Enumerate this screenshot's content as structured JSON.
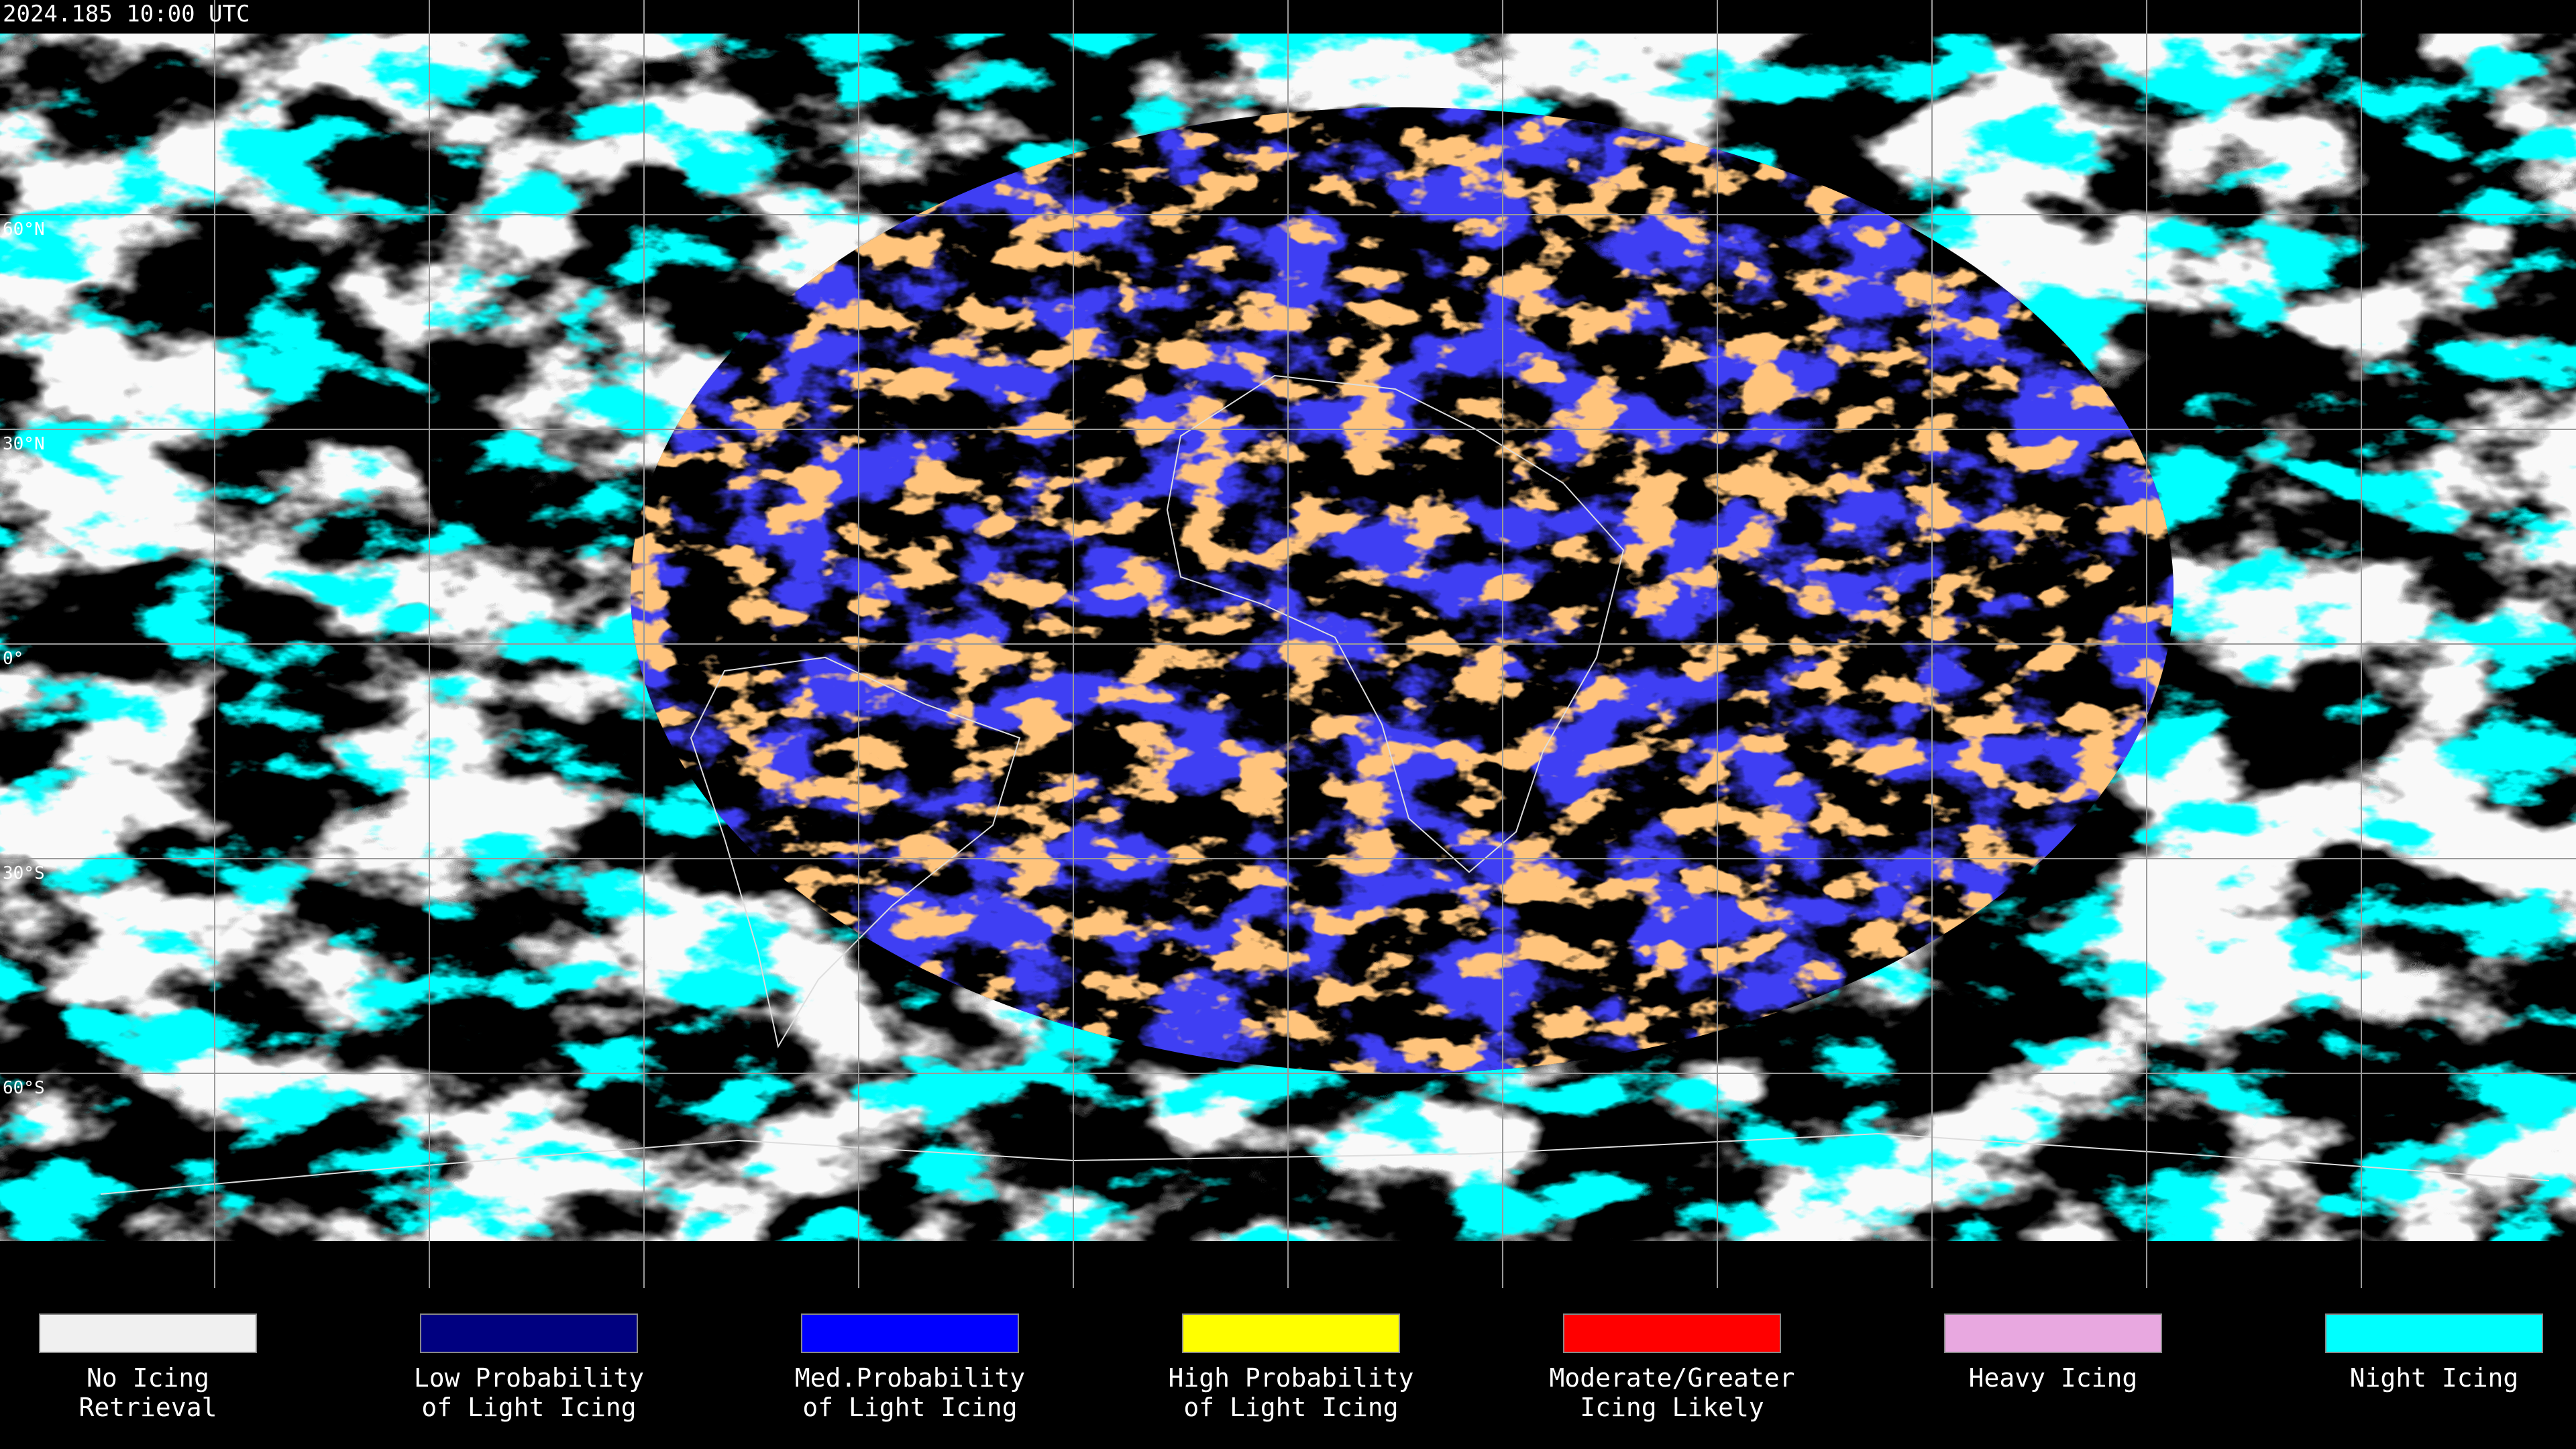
{
  "header": {
    "title": "2024.185 10:00 UTC"
  },
  "map": {
    "lat_labels": [
      "60°N",
      "30°N",
      "0°",
      "30°S",
      "60°S"
    ]
  },
  "legend": [
    {
      "color": "#f0f0f0",
      "lines": [
        "No Icing",
        "Retrieval"
      ]
    },
    {
      "color": "#000080",
      "lines": [
        "Low Probability",
        "of Light Icing"
      ]
    },
    {
      "color": "#0000ff",
      "lines": [
        "Med.Probability",
        "of Light Icing"
      ]
    },
    {
      "color": "#ffff00",
      "lines": [
        "High Probability",
        "of Light Icing"
      ]
    },
    {
      "color": "#ff0000",
      "lines": [
        "Moderate/Greater",
        "Icing Likely"
      ]
    },
    {
      "color": "#e8a8e0",
      "lines": [
        "Heavy Icing"
      ]
    },
    {
      "color": "#00ffff",
      "lines": [
        "Night Icing"
      ]
    }
  ]
}
